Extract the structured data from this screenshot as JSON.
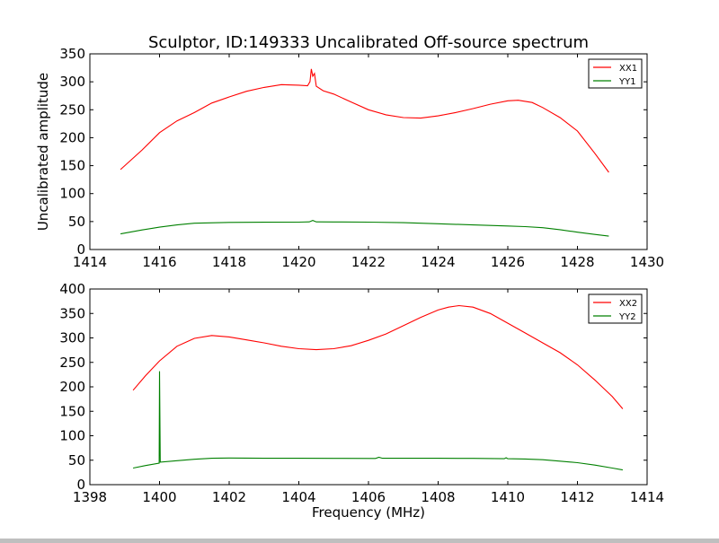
{
  "chart_data": [
    {
      "type": "line",
      "title": "Sculptor, ID:149333 Uncalibrated Off-source spectrum",
      "xlabel": "",
      "ylabel": "Uncalibrated amplitude",
      "xlim": [
        1414,
        1430
      ],
      "ylim": [
        0,
        350
      ],
      "xticks": [
        "1414",
        "1416",
        "1418",
        "1420",
        "1422",
        "1424",
        "1426",
        "1428",
        "1430"
      ],
      "yticks": [
        "0",
        "50",
        "100",
        "150",
        "200",
        "250",
        "300",
        "350"
      ],
      "legend": "top-right",
      "grid": false,
      "series": [
        {
          "name": "XX1",
          "color": "#ff0000",
          "x": [
            1414.88,
            1415.5,
            1416,
            1416.5,
            1417,
            1417.5,
            1418,
            1418.5,
            1419,
            1419.5,
            1420,
            1420.25,
            1420.32,
            1420.36,
            1420.4,
            1420.45,
            1420.5,
            1420.7,
            1421,
            1421.5,
            1422,
            1422.5,
            1423,
            1423.5,
            1424,
            1424.5,
            1425,
            1425.5,
            1426,
            1426.3,
            1426.7,
            1427,
            1427.5,
            1428,
            1428.5,
            1428.9
          ],
          "y": [
            143,
            178,
            209,
            230,
            245,
            262,
            273,
            283,
            290,
            295,
            294,
            293,
            300,
            323,
            310,
            315,
            292,
            284,
            278,
            264,
            250,
            241,
            236,
            235,
            239,
            245,
            252,
            260,
            266,
            267,
            263,
            254,
            236,
            212,
            172,
            138
          ]
        },
        {
          "name": "YY1",
          "color": "#008000",
          "x": [
            1414.88,
            1415.5,
            1416,
            1416.5,
            1417,
            1418,
            1419,
            1420,
            1420.3,
            1420.4,
            1420.5,
            1421,
            1422,
            1423,
            1424,
            1425,
            1426,
            1426.5,
            1427,
            1427.5,
            1428,
            1428.5,
            1428.9
          ],
          "y": [
            28,
            35,
            40,
            44,
            47,
            48.5,
            48.8,
            49,
            49.5,
            52,
            49.5,
            49.3,
            49,
            48,
            46,
            44,
            42,
            41,
            39,
            35.5,
            31,
            27,
            24
          ]
        }
      ]
    },
    {
      "type": "line",
      "title": "",
      "xlabel": "Frequency (MHz)",
      "ylabel": "",
      "xlim": [
        1398,
        1414
      ],
      "ylim": [
        0,
        400
      ],
      "xticks": [
        "1398",
        "1400",
        "1402",
        "1404",
        "1406",
        "1408",
        "1410",
        "1412",
        "1414"
      ],
      "yticks": [
        "0",
        "50",
        "100",
        "150",
        "200",
        "250",
        "300",
        "350",
        "400"
      ],
      "legend": "top-right",
      "grid": false,
      "series": [
        {
          "name": "XX2",
          "color": "#ff0000",
          "x": [
            1399.24,
            1399.6,
            1400,
            1400.5,
            1401,
            1401.5,
            1402,
            1402.5,
            1403,
            1403.5,
            1404,
            1404.5,
            1405,
            1405.5,
            1406,
            1406.5,
            1407,
            1407.5,
            1408,
            1408.3,
            1408.6,
            1409,
            1409.5,
            1410,
            1410.5,
            1411,
            1411.5,
            1412,
            1412.5,
            1413,
            1413.3
          ],
          "y": [
            193,
            223,
            253,
            283,
            299,
            305,
            302,
            296,
            290,
            283,
            278,
            276,
            278,
            284,
            295,
            308,
            325,
            342,
            357,
            363,
            366,
            363,
            350,
            330,
            310,
            290,
            270,
            245,
            214,
            180,
            155
          ]
        },
        {
          "name": "YY2",
          "color": "#008000",
          "x": [
            1399.24,
            1399.6,
            1399.99,
            1400.0,
            1400.02,
            1400.5,
            1401,
            1401.5,
            1402,
            1403,
            1404,
            1405,
            1406.2,
            1406.3,
            1406.4,
            1407,
            1408,
            1409,
            1409.9,
            1409.95,
            1410,
            1410.5,
            1411,
            1411.5,
            1412,
            1412.5,
            1413,
            1413.3
          ],
          "y": [
            34,
            39,
            44,
            232,
            46,
            49,
            52,
            54,
            54.5,
            54,
            54,
            53.8,
            53.5,
            56,
            54,
            54,
            54,
            53.8,
            53,
            55,
            53,
            52.5,
            51,
            48,
            45,
            40,
            34,
            30
          ]
        }
      ]
    }
  ]
}
